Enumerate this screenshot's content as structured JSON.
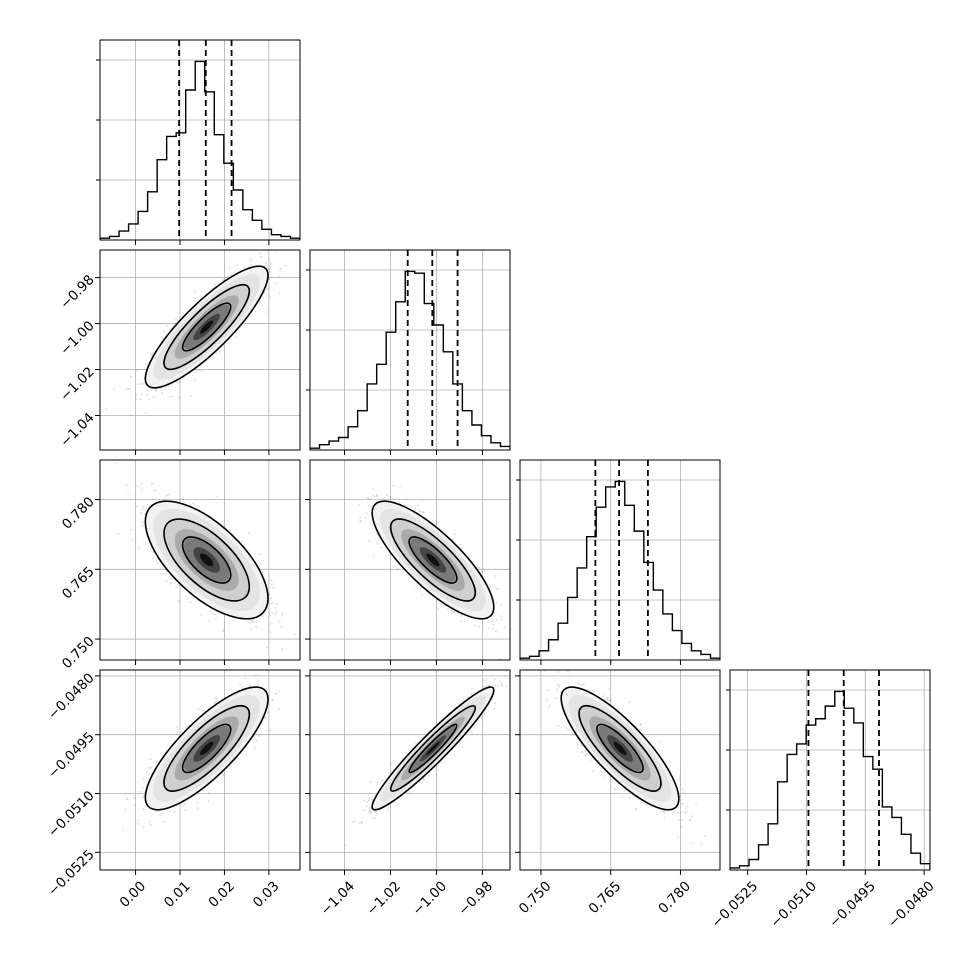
{
  "chart_data": {
    "type": "corner",
    "title": "",
    "grid": true,
    "parameters": [
      {
        "label": "",
        "range": [
          -0.008,
          0.037
        ],
        "ticks": [
          0.0,
          0.01,
          0.02,
          0.03
        ],
        "tick_labels": [
          "0.00",
          "0.01",
          "0.02",
          "0.03"
        ],
        "mean": 0.016,
        "sd": 0.006,
        "quantiles": [
          0.0098,
          0.0158,
          0.0216
        ]
      },
      {
        "label": "",
        "range": [
          -1.055,
          -0.968
        ],
        "ticks": [
          -1.04,
          -1.02,
          -1.0,
          -0.98
        ],
        "tick_labels": [
          "−1.04",
          "−1.02",
          "−1.00",
          "−0.98"
        ],
        "mean": -1.0015,
        "sd": 0.0115,
        "quantiles": [
          -1.0125,
          -1.0018,
          -0.9908
        ]
      },
      {
        "label": "",
        "range": [
          0.7455,
          0.7885
        ],
        "ticks": [
          0.75,
          0.765,
          0.78
        ],
        "tick_labels": [
          "0.750",
          "0.765",
          "0.780"
        ],
        "mean": 0.767,
        "sd": 0.0055,
        "quantiles": [
          0.7617,
          0.7668,
          0.773
        ]
      },
      {
        "label": "",
        "range": [
          -0.05295,
          -0.04785
        ],
        "ticks": [
          -0.0525,
          -0.051,
          -0.0495,
          -0.048
        ],
        "tick_labels": [
          "−0.0525",
          "−0.0510",
          "−0.0495",
          "−0.0480"
        ],
        "mean": -0.04985,
        "sd": 0.00068,
        "quantiles": [
          -0.05095,
          -0.05005,
          -0.04915
        ]
      }
    ],
    "correlations": [
      [
        1,
        0.85,
        -0.65,
        0.8
      ],
      [
        0.85,
        1,
        -0.8,
        0.95
      ],
      [
        -0.65,
        -0.8,
        1,
        -0.82
      ],
      [
        0.8,
        0.95,
        -0.82,
        1
      ]
    ],
    "histograms": [
      [
        1,
        2,
        5,
        9,
        16,
        27,
        45,
        58,
        60,
        84,
        100,
        83,
        59,
        43,
        28,
        17,
        11,
        6,
        3,
        2,
        1
      ],
      [
        1,
        3,
        5,
        7,
        13,
        22,
        37,
        48,
        66,
        83,
        100,
        99,
        82,
        70,
        55,
        37,
        22,
        14,
        8,
        4,
        2
      ],
      [
        1,
        2,
        5,
        11,
        20,
        34,
        50,
        67,
        83,
        94,
        97,
        84,
        70,
        53,
        38,
        25,
        16,
        9,
        5,
        3,
        1
      ],
      [
        1,
        2,
        5,
        12,
        22,
        42,
        55,
        60,
        69,
        72,
        78,
        85,
        77,
        70,
        54,
        48,
        30,
        25,
        17,
        8,
        3
      ]
    ]
  }
}
